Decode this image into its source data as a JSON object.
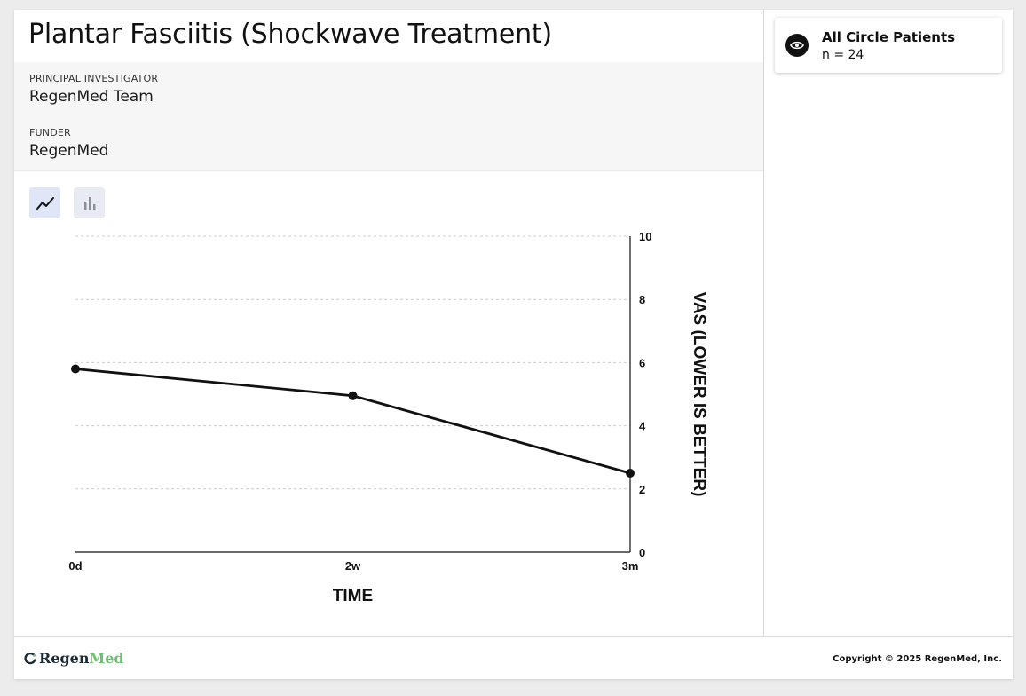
{
  "study": {
    "title": "Plantar Fasciitis (Shockwave Treatment)",
    "pi_label": "PRINCIPAL INVESTIGATOR",
    "pi_value": "RegenMed Team",
    "funder_label": "FUNDER",
    "funder_value": "RegenMed"
  },
  "view_toggles": [
    {
      "name": "line-chart",
      "icon": "line-chart-icon",
      "active": true
    },
    {
      "name": "bar-chart",
      "icon": "bar-chart-icon",
      "active": false
    }
  ],
  "cohort": {
    "icon": "eye-icon",
    "name": "All Circle Patients",
    "count": "n = 24"
  },
  "footer": {
    "logo_part1": "Regen",
    "logo_part2": "Med",
    "copyright": "Copyright © 2025 RegenMed, Inc."
  },
  "chart_data": {
    "type": "line",
    "categories": [
      "0d",
      "2w",
      "3m"
    ],
    "series": [
      {
        "values": [
          5.8,
          4.95,
          2.5
        ]
      }
    ],
    "xlabel": "TIME",
    "ylabel": "VAS (LOWER IS BETTER)",
    "ylim": [
      0,
      10
    ],
    "yticks": [
      0,
      2,
      4,
      6,
      8,
      10
    ],
    "grid": true,
    "line_color": "#111111",
    "grid_color": "#cccccc"
  }
}
